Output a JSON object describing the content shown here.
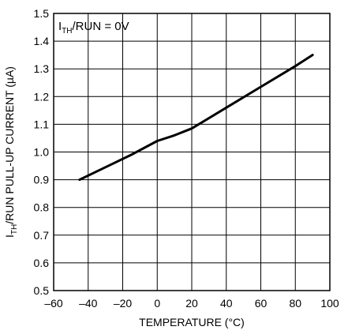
{
  "chart_data": {
    "type": "line",
    "title": "",
    "xlabel": "TEMPERATURE (°C)",
    "ylabel": {
      "prefix": "I",
      "subscript": "TH",
      "suffix": "/RUN PULL-UP CURRENT (µA)"
    },
    "annotation": {
      "prefix": "I",
      "subscript": "TH",
      "suffix": "/RUN = 0V"
    },
    "xlim": [
      -60,
      100
    ],
    "ylim": [
      0.5,
      1.5
    ],
    "x_ticks": [
      -60,
      -40,
      -20,
      0,
      20,
      40,
      60,
      80,
      100
    ],
    "y_ticks": [
      0.5,
      0.6,
      0.7,
      0.8,
      0.9,
      1.0,
      1.1,
      1.2,
      1.3,
      1.4,
      1.5
    ],
    "x_tick_labels": [
      "–60",
      "–40",
      "–20",
      "0",
      "20",
      "40",
      "60",
      "80",
      "100"
    ],
    "y_tick_labels": [
      "0.5",
      "0.6",
      "0.7",
      "0.8",
      "0.9",
      "1.0",
      "1.1",
      "1.2",
      "1.3",
      "1.4",
      "1.5"
    ],
    "grid": true,
    "series": [
      {
        "x": [
          -45,
          -30,
          -15,
          0,
          10,
          20,
          40,
          60,
          80,
          90
        ],
        "y": [
          0.9,
          0.945,
          0.99,
          1.04,
          1.06,
          1.085,
          1.16,
          1.235,
          1.31,
          1.35
        ]
      }
    ],
    "line_color": "#000000",
    "grid_color": "#000000"
  }
}
